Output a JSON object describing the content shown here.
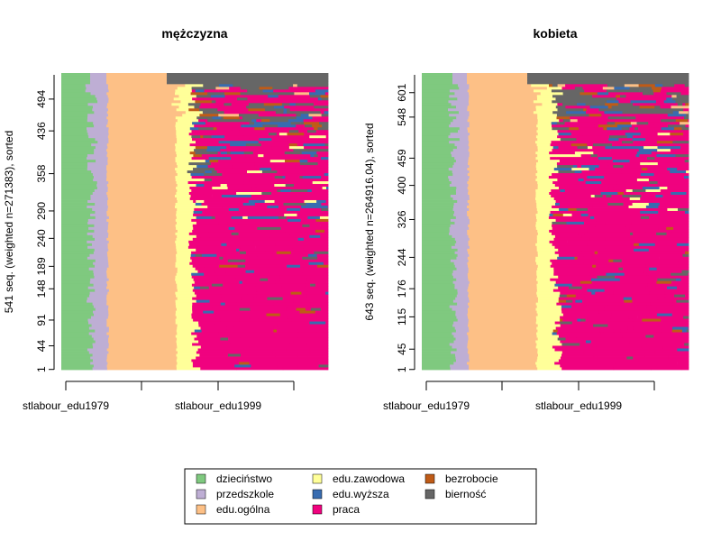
{
  "chart_data": [
    {
      "type": "sequence-index-plot",
      "title": "mężczyzna",
      "ylabel": "541 seq. (weighted n=271383), sorted",
      "n_sequences": 541,
      "y_ticks": [
        "1",
        "44",
        "91",
        "148",
        "189",
        "240",
        "290",
        "358",
        "436",
        "494"
      ],
      "x_tick_labels": [
        "stlabour_edu1979",
        "stlabour_edu1999"
      ]
    },
    {
      "type": "sequence-index-plot",
      "title": "kobieta",
      "ylabel": "643 seq. (weighted n=264916.04), sorted",
      "n_sequences": 643,
      "y_ticks": [
        "1",
        "45",
        "115",
        "176",
        "244",
        "326",
        "400",
        "459",
        "548",
        "601"
      ],
      "x_tick_labels": [
        "stlabour_edu1979",
        "stlabour_edu1999"
      ]
    }
  ],
  "legend": [
    {
      "label": "dzieciństwo",
      "color": "#7FC97F"
    },
    {
      "label": "przedszkole",
      "color": "#BEAED4"
    },
    {
      "label": "edu.ogólna",
      "color": "#FDC086"
    },
    {
      "label": "edu.zawodowa",
      "color": "#FFFF99"
    },
    {
      "label": "edu.wyższa",
      "color": "#386CB0"
    },
    {
      "label": "praca",
      "color": "#F0027F"
    },
    {
      "label": "bezrobocie",
      "color": "#BF5B17"
    },
    {
      "label": "bierność",
      "color": "#666666"
    }
  ]
}
